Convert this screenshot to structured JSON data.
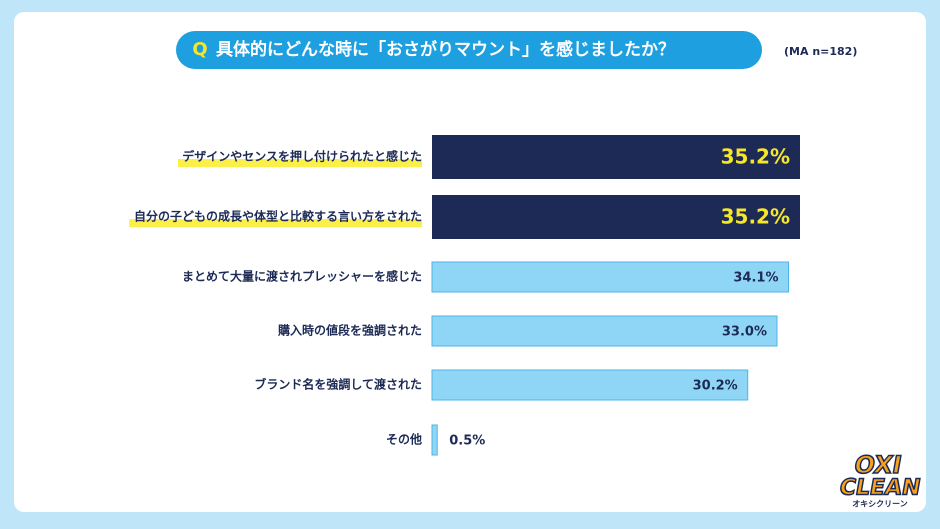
{
  "chart_data": {
    "type": "hbar",
    "question_marker": "Q",
    "title": "具体的にどんな時に「おさがりマウント」を感じましたか？",
    "subtitle": "(MA n=182)",
    "categories": [
      "デザインやセンスを押し付けられたと感じた",
      "自分の子どもの成長や体型と比較する言い方をされた",
      "まとめて大量に渡されプレッシャーを感じた",
      "購入時の値段を強調された",
      "ブランド名を強調して渡された",
      "その他"
    ],
    "values": [
      35.2,
      35.2,
      34.1,
      33.0,
      30.2,
      0.5
    ],
    "value_labels": [
      "35.2%",
      "35.2%",
      "34.1%",
      "33.0%",
      "30.2%",
      "0.5%"
    ],
    "colors": [
      "#1c2a55",
      "#1c2a55",
      "#8fd6f6",
      "#8fd6f6",
      "#8fd6f6",
      "#8fd6f6"
    ],
    "highlighted": [
      true,
      true,
      false,
      false,
      false,
      false
    ],
    "logo": {
      "line1": "OXI",
      "line2": "CLEAN",
      "kana": "オキシクリーン"
    }
  }
}
